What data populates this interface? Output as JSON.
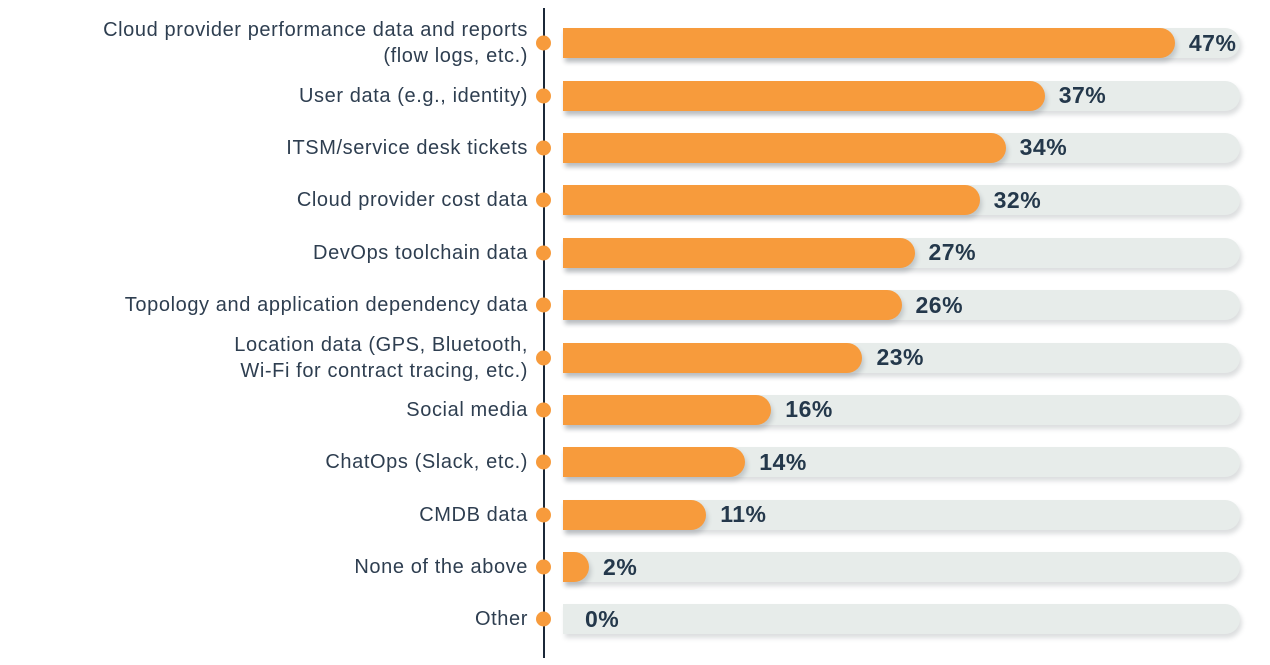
{
  "chart_data": {
    "type": "bar",
    "orientation": "horizontal",
    "title": "",
    "xlabel": "",
    "ylabel": "",
    "xlim": [
      0,
      52
    ],
    "grid": false,
    "legend": "none",
    "categories": [
      "Cloud provider performance data and reports\n(flow logs, etc.)",
      "User data (e.g., identity)",
      "ITSM/service desk tickets",
      "Cloud provider cost data",
      "DevOps toolchain data",
      "Topology and application dependency data",
      "Location data (GPS, Bluetooth,\nWi-Fi for contract tracing, etc.)",
      "Social media",
      "ChatOps (Slack, etc.)",
      "CMDB data",
      "None of the above",
      "Other"
    ],
    "values": [
      47,
      37,
      34,
      32,
      27,
      26,
      23,
      16,
      14,
      11,
      2,
      0
    ],
    "display_values": [
      "47%",
      "37%",
      "34%",
      "32%",
      "27%",
      "26%",
      "23%",
      "16%",
      "14%",
      "11%",
      "2%",
      "0%"
    ],
    "colors": {
      "bar_fill": "#F79B3C",
      "track": "#E7ECEA",
      "category_text": "#2E3E50",
      "value_text": "#24384B",
      "axis": "#1B2838"
    }
  }
}
